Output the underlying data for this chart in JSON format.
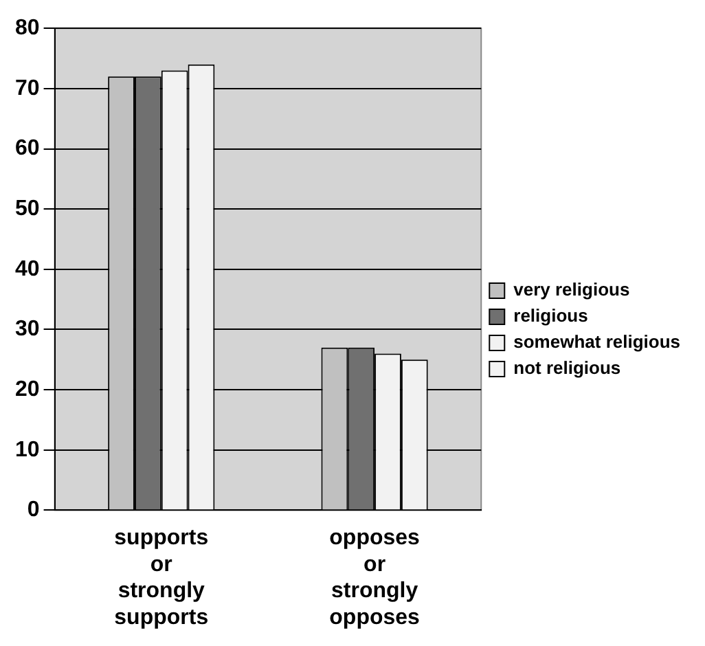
{
  "chart_data": {
    "type": "bar",
    "categories": [
      "supports or strongly supports",
      "opposes or strongly opposes"
    ],
    "series": [
      {
        "name": "very religious",
        "color": "#c0c0c0",
        "values": [
          72,
          27
        ]
      },
      {
        "name": "religious",
        "color": "#707070",
        "values": [
          72,
          27
        ]
      },
      {
        "name": "somewhat religious",
        "color": "#f2f2f2",
        "values": [
          73,
          26
        ]
      },
      {
        "name": "not religious",
        "color": "#f2f2f2",
        "values": [
          74,
          25
        ]
      }
    ],
    "ylim": [
      0,
      80
    ],
    "yticks": [
      0,
      10,
      20,
      30,
      40,
      50,
      60,
      70,
      80
    ],
    "grid": "y",
    "legend": "right"
  }
}
